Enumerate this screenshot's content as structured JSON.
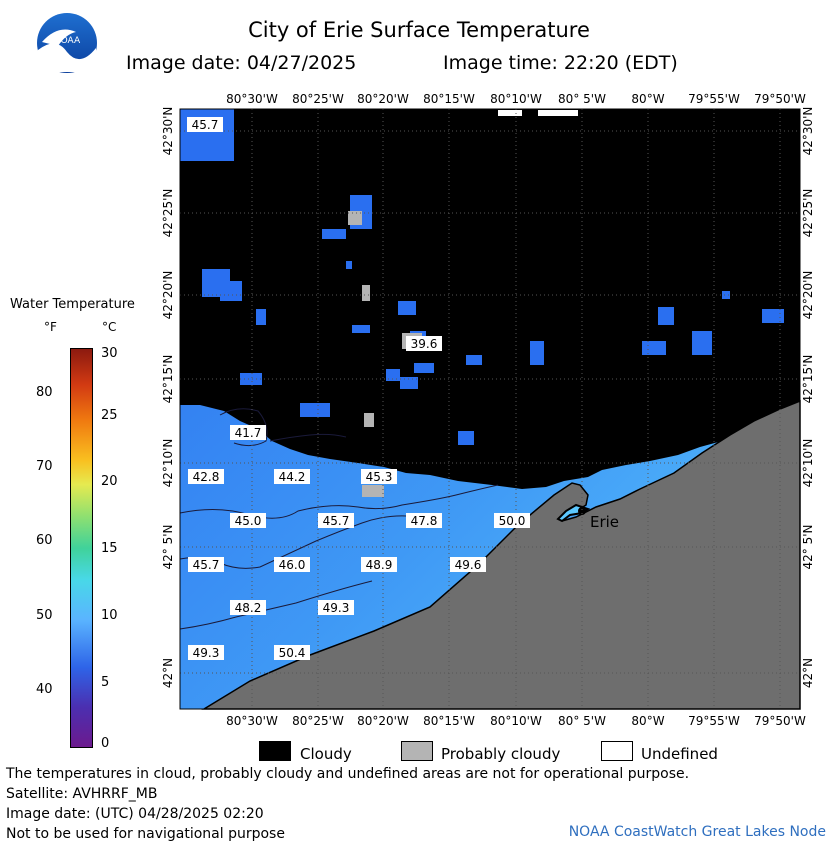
{
  "header": {
    "title": "City of Erie Surface Temperature",
    "date_label": "Image date: 04/27/2025",
    "time_label": "Image time: 22:20 (EDT)"
  },
  "logo": {
    "text": "NOAA",
    "icon": "noaa-logo"
  },
  "colorbar": {
    "title": "Water Temperature",
    "unit_f": "°F",
    "unit_c": "°C",
    "f_ticks": [
      "80",
      "70",
      "60",
      "50",
      "40"
    ],
    "c_ticks": [
      "30",
      "25",
      "20",
      "15",
      "10",
      "5",
      "0"
    ]
  },
  "map": {
    "lon_labels": [
      "80°30'W",
      "80°25'W",
      "80°20'W",
      "80°15'W",
      "80°10'W",
      "80° 5'W",
      "80°W",
      "79°55'W",
      "79°50'W"
    ],
    "lat_labels": [
      "42°30'N",
      "42°25'N",
      "42°20'N",
      "42°15'N",
      "42°10'N",
      "42° 5'N",
      "42°N"
    ],
    "city": "Erie",
    "temperature_labels": [
      "45.7",
      "39.6",
      "41.7",
      "42.8",
      "44.2",
      "45.3",
      "45.0",
      "45.7",
      "47.8",
      "50.0",
      "45.7",
      "46.0",
      "48.9",
      "49.6",
      "48.2",
      "49.3",
      "49.3",
      "50.4"
    ],
    "colors": {
      "cloud": "#000000",
      "land": "#6e6e6e",
      "water_cold": "#2a6ff0",
      "water_warm": "#5cc8ff"
    }
  },
  "key": {
    "cloudy": "Cloudy",
    "probably_cloudy": "Probably cloudy",
    "undefined": "Undefined"
  },
  "footer": {
    "line1": "The temperatures in cloud, probably cloudy and undefined areas are not for operational purpose.",
    "line2": "Satellite: AVHRRF_MB",
    "line3": "Image date: (UTC) 04/28/2025  02:20",
    "line4": "Not to be used for navigational purpose",
    "credit": "NOAA CoastWatch Great Lakes Node"
  }
}
